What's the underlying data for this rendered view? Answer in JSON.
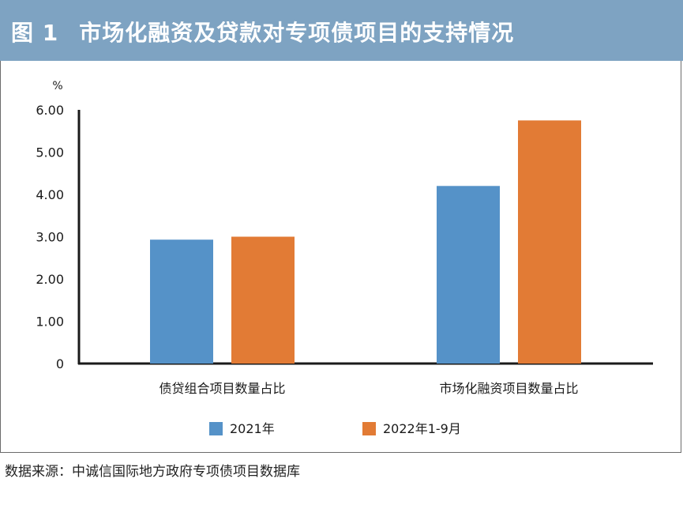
{
  "header": {
    "figure_number": "图 1",
    "title": "市场化融资及贷款对专项债项目的支持情况"
  },
  "source_note": "数据来源：中诚信国际地方政府专项债项目数据库",
  "colors": {
    "header_bg": "#7ea3c2",
    "series_2021": "#5592c8",
    "series_2022": "#e27b35"
  },
  "chart_data": {
    "type": "bar",
    "title": "",
    "ylabel": "%",
    "xlabel": "",
    "ylim": [
      0,
      6
    ],
    "yticks": [
      "0",
      "1.00",
      "2.00",
      "3.00",
      "4.00",
      "5.00",
      "6.00"
    ],
    "categories": [
      "债贷组合项目数量占比",
      "市场化融资项目数量占比"
    ],
    "series": [
      {
        "name": "2021年",
        "values": [
          2.93,
          4.2
        ]
      },
      {
        "name": "2022年1-9月",
        "values": [
          3.0,
          5.75
        ]
      }
    ],
    "grid": false,
    "legend": "bottom"
  }
}
